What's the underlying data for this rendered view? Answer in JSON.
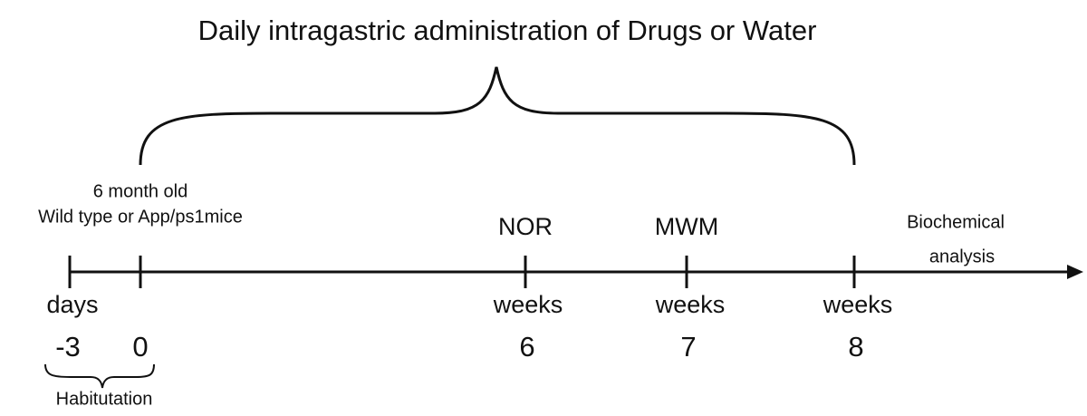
{
  "title": "Daily intragastric administration of Drugs or Water",
  "start_label": [
    "6 month old",
    "Wild type or App/ps1mice"
  ],
  "end_label": [
    "Biochemical",
    "analysis"
  ],
  "ticks": [
    {
      "unit": "days",
      "value": "-3"
    },
    {
      "value": "0"
    },
    {
      "label": "NOR",
      "unit": "weeks",
      "value": "6"
    },
    {
      "label": "MWM",
      "unit": "weeks",
      "value": "7"
    },
    {
      "unit": "weeks",
      "value": "8"
    }
  ],
  "habituation": "Habitutation"
}
